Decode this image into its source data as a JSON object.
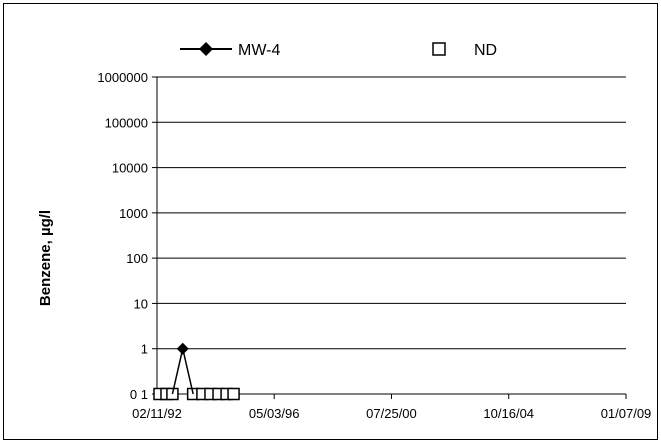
{
  "chart_data": {
    "type": "scatter",
    "ylabel": "Benzene, µg/l",
    "y_scale": "log",
    "ylim": [
      0.1,
      1000000
    ],
    "y_ticks": [
      0.1,
      1,
      10,
      100,
      1000,
      10000,
      100000,
      1000000
    ],
    "y_tick_labels": [
      "0 1",
      "1",
      "10",
      "100",
      "1000",
      "10000",
      "100000",
      "1000000"
    ],
    "xlim": [
      "1992-02-11",
      "2009-01-07"
    ],
    "x_ticks": [
      "1992-02-11",
      "1996-05-03",
      "2000-07-25",
      "2004-10-16",
      "2009-01-07"
    ],
    "x_tick_labels": [
      "02/11/92",
      "05/03/96",
      "07/25/00",
      "10/16/04",
      "01/07/09"
    ],
    "grid": true,
    "legend_position": "top",
    "series": [
      {
        "name": "MW-4",
        "marker": "filled-diamond",
        "color": "#000000",
        "points": [
          {
            "x": "1992-09-01",
            "y": 0.1
          },
          {
            "x": "1993-01-15",
            "y": 1
          },
          {
            "x": "1993-06-01",
            "y": 0.1
          }
        ]
      },
      {
        "name": "ND",
        "marker": "open-square",
        "color": "#000000",
        "points": [
          {
            "x": "1992-03-15",
            "y": 0.1
          },
          {
            "x": "1992-06-15",
            "y": 0.1
          },
          {
            "x": "1992-09-01",
            "y": 0.1
          },
          {
            "x": "1993-06-01",
            "y": 0.1
          },
          {
            "x": "1993-10-01",
            "y": 0.1
          },
          {
            "x": "1994-01-15",
            "y": 0.1
          },
          {
            "x": "1994-05-01",
            "y": 0.1
          },
          {
            "x": "1994-08-15",
            "y": 0.1
          },
          {
            "x": "1994-11-15",
            "y": 0.1
          }
        ]
      }
    ]
  }
}
